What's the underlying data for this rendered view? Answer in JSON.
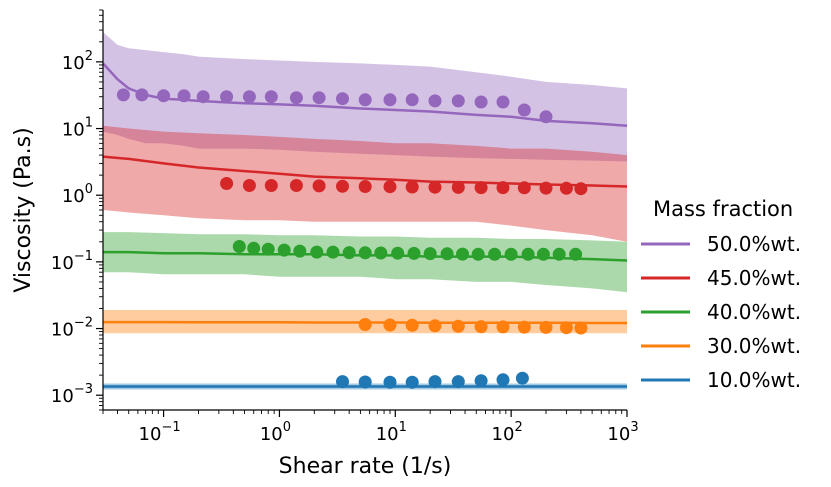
{
  "chart_data": {
    "type": "line",
    "xlabel": "Shear rate (1/s)",
    "ylabel": "Viscosity (Pa.s)",
    "xscale": "log",
    "yscale": "log",
    "xlim": [
      0.03,
      1000
    ],
    "ylim": [
      0.0006,
      600
    ],
    "xticks": [
      {
        "value": 0.1,
        "base": "10",
        "exp": "−1"
      },
      {
        "value": 1,
        "base": "10",
        "exp": "0"
      },
      {
        "value": 10,
        "base": "10",
        "exp": "1"
      },
      {
        "value": 100,
        "base": "10",
        "exp": "2"
      },
      {
        "value": 1000,
        "base": "10",
        "exp": "3"
      }
    ],
    "yticks": [
      {
        "value": 0.001,
        "base": "10",
        "exp": "−3"
      },
      {
        "value": 0.01,
        "base": "10",
        "exp": "−2"
      },
      {
        "value": 0.1,
        "base": "10",
        "exp": "−1"
      },
      {
        "value": 1,
        "base": "10",
        "exp": "0"
      },
      {
        "value": 10,
        "base": "10",
        "exp": "1"
      },
      {
        "value": 100,
        "base": "10",
        "exp": "2"
      }
    ],
    "legend": {
      "title": "Mass fraction",
      "placement": "right"
    },
    "series": [
      {
        "name": "50.0%wt.",
        "color": "#9467bd",
        "line": {
          "x": [
            0.03,
            0.04,
            0.05,
            0.07,
            0.1,
            0.15,
            0.2,
            0.3,
            0.5,
            1,
            2,
            5,
            10,
            20,
            50,
            100,
            200,
            500,
            1000
          ],
          "y": [
            95,
            55,
            40,
            32,
            28,
            27,
            26,
            25,
            24,
            23,
            22,
            20,
            19,
            18,
            16,
            15,
            13,
            12,
            11
          ]
        },
        "band_low": [
          9,
          8,
          7,
          6,
          6,
          5.5,
          5,
          5,
          5,
          4.8,
          4.5,
          4.2,
          4,
          3.8,
          3.6,
          3.5,
          3.4,
          3.3,
          3.2
        ],
        "band_high": [
          280,
          180,
          160,
          150,
          140,
          130,
          120,
          115,
          110,
          105,
          100,
          95,
          90,
          85,
          70,
          60,
          50,
          45,
          40
        ],
        "points": {
          "x": [
            0.045,
            0.065,
            0.1,
            0.15,
            0.22,
            0.35,
            0.55,
            0.85,
            1.4,
            2.2,
            3.5,
            5.5,
            9,
            14,
            22,
            35,
            55,
            85,
            130,
            200
          ],
          "y": [
            32,
            32,
            31,
            31,
            30,
            30,
            30,
            30,
            29,
            29,
            28,
            27,
            27,
            27,
            26,
            26,
            25,
            25,
            19,
            15
          ]
        }
      },
      {
        "name": "45.0%wt.",
        "color": "#d62728",
        "line": {
          "x": [
            0.03,
            0.05,
            0.1,
            0.2,
            0.5,
            1,
            2,
            5,
            10,
            20,
            50,
            100,
            200,
            500,
            1000
          ],
          "y": [
            3.8,
            3.5,
            3.0,
            2.6,
            2.3,
            2.1,
            1.9,
            1.8,
            1.7,
            1.6,
            1.55,
            1.5,
            1.45,
            1.4,
            1.35
          ]
        },
        "band_low": [
          0.6,
          0.55,
          0.5,
          0.45,
          0.42,
          0.42,
          0.4,
          0.4,
          0.4,
          0.4,
          0.4,
          0.35,
          0.3,
          0.25,
          0.2
        ],
        "band_high": [
          11,
          10,
          9,
          8.5,
          8,
          7.5,
          7,
          6.5,
          6,
          6,
          5.5,
          5,
          5,
          4.5,
          4
        ],
        "points": {
          "x": [
            0.35,
            0.55,
            0.85,
            1.4,
            2.2,
            3.5,
            5.5,
            9,
            14,
            22,
            35,
            55,
            85,
            130,
            200,
            300,
            400
          ],
          "y": [
            1.5,
            1.4,
            1.4,
            1.4,
            1.38,
            1.36,
            1.35,
            1.34,
            1.33,
            1.32,
            1.31,
            1.3,
            1.3,
            1.29,
            1.28,
            1.27,
            1.25
          ]
        }
      },
      {
        "name": "40.0%wt.",
        "color": "#2ca02c",
        "line": {
          "x": [
            0.03,
            0.05,
            0.1,
            0.2,
            0.5,
            1,
            2,
            5,
            10,
            20,
            50,
            100,
            200,
            500,
            1000
          ],
          "y": [
            0.14,
            0.14,
            0.135,
            0.135,
            0.13,
            0.13,
            0.13,
            0.125,
            0.125,
            0.12,
            0.12,
            0.12,
            0.115,
            0.11,
            0.105
          ]
        },
        "band_low": [
          0.07,
          0.07,
          0.065,
          0.065,
          0.065,
          0.06,
          0.06,
          0.06,
          0.055,
          0.055,
          0.05,
          0.05,
          0.045,
          0.04,
          0.035
        ],
        "band_high": [
          0.28,
          0.28,
          0.27,
          0.26,
          0.26,
          0.25,
          0.25,
          0.24,
          0.24,
          0.23,
          0.23,
          0.22,
          0.22,
          0.21,
          0.2
        ],
        "points": {
          "x": [
            0.45,
            0.6,
            0.8,
            1.1,
            1.5,
            2.1,
            2.9,
            4,
            5.5,
            7.5,
            10.5,
            14.5,
            20,
            28,
            38,
            52,
            72,
            100,
            140,
            190,
            260,
            360
          ],
          "y": [
            0.17,
            0.16,
            0.155,
            0.15,
            0.145,
            0.14,
            0.14,
            0.138,
            0.137,
            0.136,
            0.135,
            0.134,
            0.133,
            0.132,
            0.131,
            0.13,
            0.13,
            0.13,
            0.13,
            0.13,
            0.13,
            0.13
          ]
        }
      },
      {
        "name": "30.0%wt.",
        "color": "#ff7f0e",
        "line": {
          "x": [
            0.03,
            0.05,
            0.1,
            0.2,
            0.5,
            1,
            2,
            5,
            10,
            20,
            50,
            100,
            200,
            500,
            1000
          ],
          "y": [
            0.0125,
            0.0125,
            0.0125,
            0.0124,
            0.0124,
            0.0124,
            0.0123,
            0.0123,
            0.0123,
            0.0122,
            0.0122,
            0.0122,
            0.0122,
            0.0121,
            0.0121
          ]
        },
        "band_low": [
          0.0085,
          0.0085,
          0.0085,
          0.0085,
          0.0085,
          0.0085,
          0.0085,
          0.0085,
          0.0085,
          0.0085,
          0.0085,
          0.0085,
          0.0085,
          0.0085,
          0.0085
        ],
        "band_high": [
          0.019,
          0.019,
          0.019,
          0.019,
          0.019,
          0.019,
          0.019,
          0.019,
          0.019,
          0.019,
          0.019,
          0.019,
          0.019,
          0.019,
          0.019
        ],
        "points": {
          "x": [
            5.5,
            9,
            14,
            22,
            35,
            55,
            85,
            130,
            200,
            300,
            400
          ],
          "y": [
            0.0115,
            0.0113,
            0.0112,
            0.011,
            0.0108,
            0.0107,
            0.0106,
            0.0105,
            0.0104,
            0.0103,
            0.0102
          ]
        }
      },
      {
        "name": "10.0%wt.",
        "color": "#1f77b4",
        "line": {
          "x": [
            0.03,
            0.1,
            1,
            10,
            100,
            1000
          ],
          "y": [
            0.00135,
            0.00135,
            0.00135,
            0.00135,
            0.00135,
            0.00135
          ]
        },
        "band_low": [
          0.00122,
          0.00122,
          0.00122,
          0.00122,
          0.00122,
          0.00122
        ],
        "band_high": [
          0.0015,
          0.0015,
          0.0015,
          0.0015,
          0.0015,
          0.0015
        ],
        "points": {
          "x": [
            3.5,
            5.5,
            9,
            14,
            22,
            35,
            55,
            85,
            125
          ],
          "y": [
            0.0016,
            0.00158,
            0.00157,
            0.00157,
            0.0016,
            0.0016,
            0.00165,
            0.0017,
            0.0018
          ]
        }
      }
    ]
  }
}
